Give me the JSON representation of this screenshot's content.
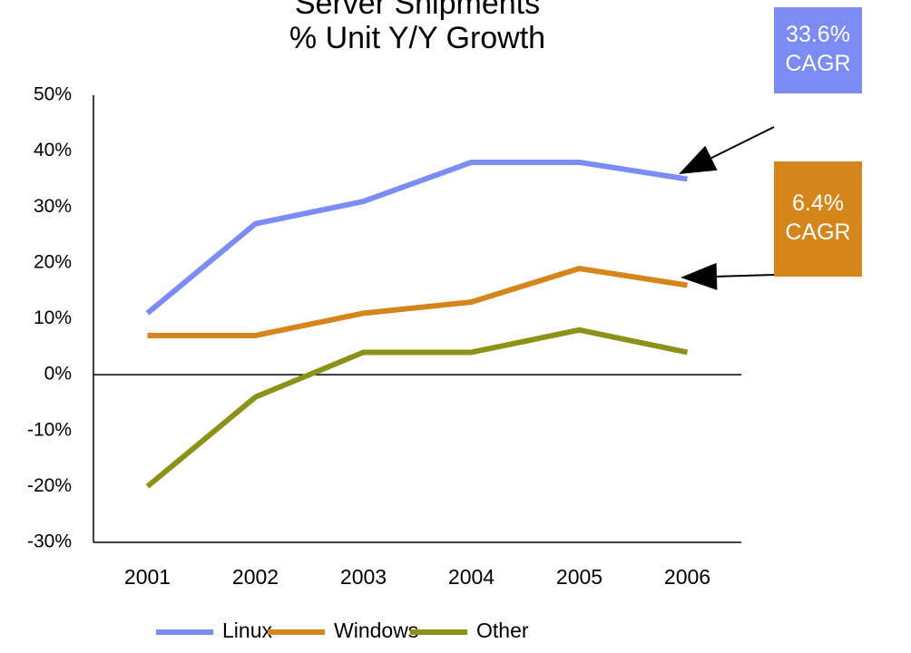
{
  "chart_data": {
    "type": "line",
    "title": "Server Shipments",
    "subtitle": "% Unit Y/Y Growth",
    "categories": [
      "2001",
      "2002",
      "2003",
      "2004",
      "2005",
      "2006"
    ],
    "series": [
      {
        "name": "Linux",
        "color": "#7b8cf5",
        "values": [
          11,
          27,
          31,
          38,
          38,
          35
        ]
      },
      {
        "name": "Windows",
        "color": "#d4861c",
        "values": [
          7,
          7,
          11,
          13,
          19,
          16
        ]
      },
      {
        "name": "Other",
        "color": "#8c9118",
        "values": [
          -20,
          -4,
          4,
          4,
          8,
          4
        ]
      }
    ],
    "ylim": [
      -30,
      50
    ],
    "yticks": [
      {
        "value": -30,
        "label": "-30%"
      },
      {
        "value": -20,
        "label": "-20%"
      },
      {
        "value": -10,
        "label": "-10%"
      },
      {
        "value": 0,
        "label": "0%"
      },
      {
        "value": 10,
        "label": "10%"
      },
      {
        "value": 20,
        "label": "20%"
      },
      {
        "value": 30,
        "label": "30%"
      },
      {
        "value": 40,
        "label": "40%"
      },
      {
        "value": 50,
        "label": "50%"
      }
    ],
    "grid": false,
    "legend": "bottom",
    "annotations": [
      {
        "lines": [
          "33.6%",
          "CAGR"
        ],
        "color": "#7b8cf5"
      },
      {
        "lines": [
          "6.4%",
          "CAGR"
        ],
        "color": "#d4861c"
      }
    ]
  }
}
